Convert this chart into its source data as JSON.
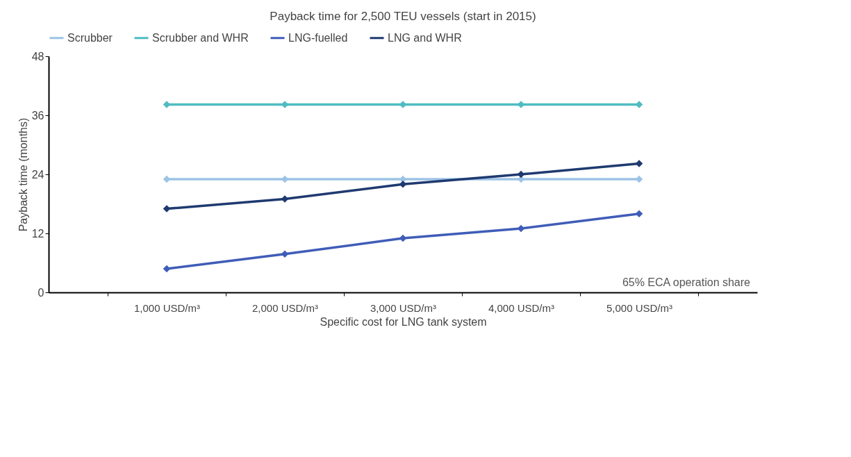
{
  "chart_data": {
    "type": "line",
    "title": "Payback time for 2,500 TEU vessels (start in 2015)",
    "xlabel": "Specific cost for LNG tank system",
    "ylabel": "Payback time (months)",
    "categories": [
      "1,000 USD/m³",
      "2,000 USD/m³",
      "3,000 USD/m³",
      "4,000 USD/m³",
      "5,000 USD/m³"
    ],
    "series": [
      {
        "name": "Scrubber",
        "color": "#9dc3e6",
        "values": [
          23,
          23,
          23,
          23,
          23
        ]
      },
      {
        "name": "Scrubber and WHR",
        "color": "#4fbcc2",
        "values": [
          38.2,
          38.2,
          38.2,
          38.2,
          38.2
        ]
      },
      {
        "name": "LNG-fuelled",
        "color": "#3f5db8",
        "values": [
          4.8,
          7.8,
          11,
          13,
          16
        ]
      },
      {
        "name": "LNG and WHR",
        "color": "#1f3a70",
        "values": [
          17,
          19,
          22,
          24,
          26.2
        ]
      }
    ],
    "ylim": [
      0,
      48
    ],
    "yticks": [
      0,
      12,
      24,
      36,
      48
    ],
    "grid": false,
    "legend": "top",
    "marker": "diamond",
    "line_style": "solid",
    "annotations": [
      "65% ECA operation share"
    ]
  }
}
